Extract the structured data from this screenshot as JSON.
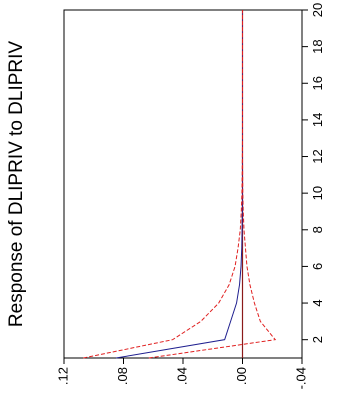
{
  "chart_data": {
    "type": "line",
    "title": "Response of DLIPRIV to DLIPRIV",
    "x": [
      1,
      2,
      3,
      4,
      5,
      6,
      7,
      8,
      9,
      10,
      11,
      12,
      13,
      14,
      15,
      16,
      17,
      18,
      19,
      20
    ],
    "x_ticks": [
      2,
      4,
      6,
      8,
      10,
      12,
      14,
      16,
      18,
      20
    ],
    "x_tick_labels": [
      "2",
      "4",
      "6",
      "8",
      "10",
      "12",
      "14",
      "16",
      "18",
      "20"
    ],
    "xlim": [
      1,
      20
    ],
    "y_ticks": [
      0.12,
      0.08,
      0.04,
      0.0,
      -0.04
    ],
    "y_tick_labels": [
      ".12",
      ".08",
      ".04",
      ".00",
      "-.04"
    ],
    "ylim": [
      -0.04,
      0.12
    ],
    "orientation": "rotated",
    "series": [
      {
        "role": "response",
        "style": "solid",
        "color": "#1f1f8f",
        "values": [
          0.085,
          0.012,
          0.008,
          0.004,
          0.002,
          0.001,
          0.0005,
          0.0003,
          0.0001,
          0.0,
          0.0,
          0.0,
          0.0,
          0.0,
          0.0,
          0.0,
          0.0,
          0.0,
          0.0,
          0.0
        ]
      },
      {
        "role": "upper-band",
        "style": "dashed",
        "color": "#e02020",
        "values": [
          0.107,
          0.047,
          0.028,
          0.016,
          0.009,
          0.005,
          0.003,
          0.0015,
          0.0008,
          0.0004,
          0.0002,
          0.0001,
          0.0,
          0.0,
          0.0,
          0.0,
          0.0,
          0.0,
          0.0,
          0.0
        ]
      },
      {
        "role": "lower-band",
        "style": "dashed",
        "color": "#e02020",
        "values": [
          0.063,
          -0.022,
          -0.012,
          -0.008,
          -0.005,
          -0.003,
          -0.002,
          -0.001,
          -0.0005,
          -0.0002,
          -0.0001,
          0.0,
          0.0,
          0.0,
          0.0,
          0.0,
          0.0,
          0.0,
          0.0,
          0.0
        ]
      }
    ],
    "zero_line": {
      "value": 0.0,
      "color": "#8b1a1a"
    },
    "grid": false,
    "legend": "none"
  }
}
